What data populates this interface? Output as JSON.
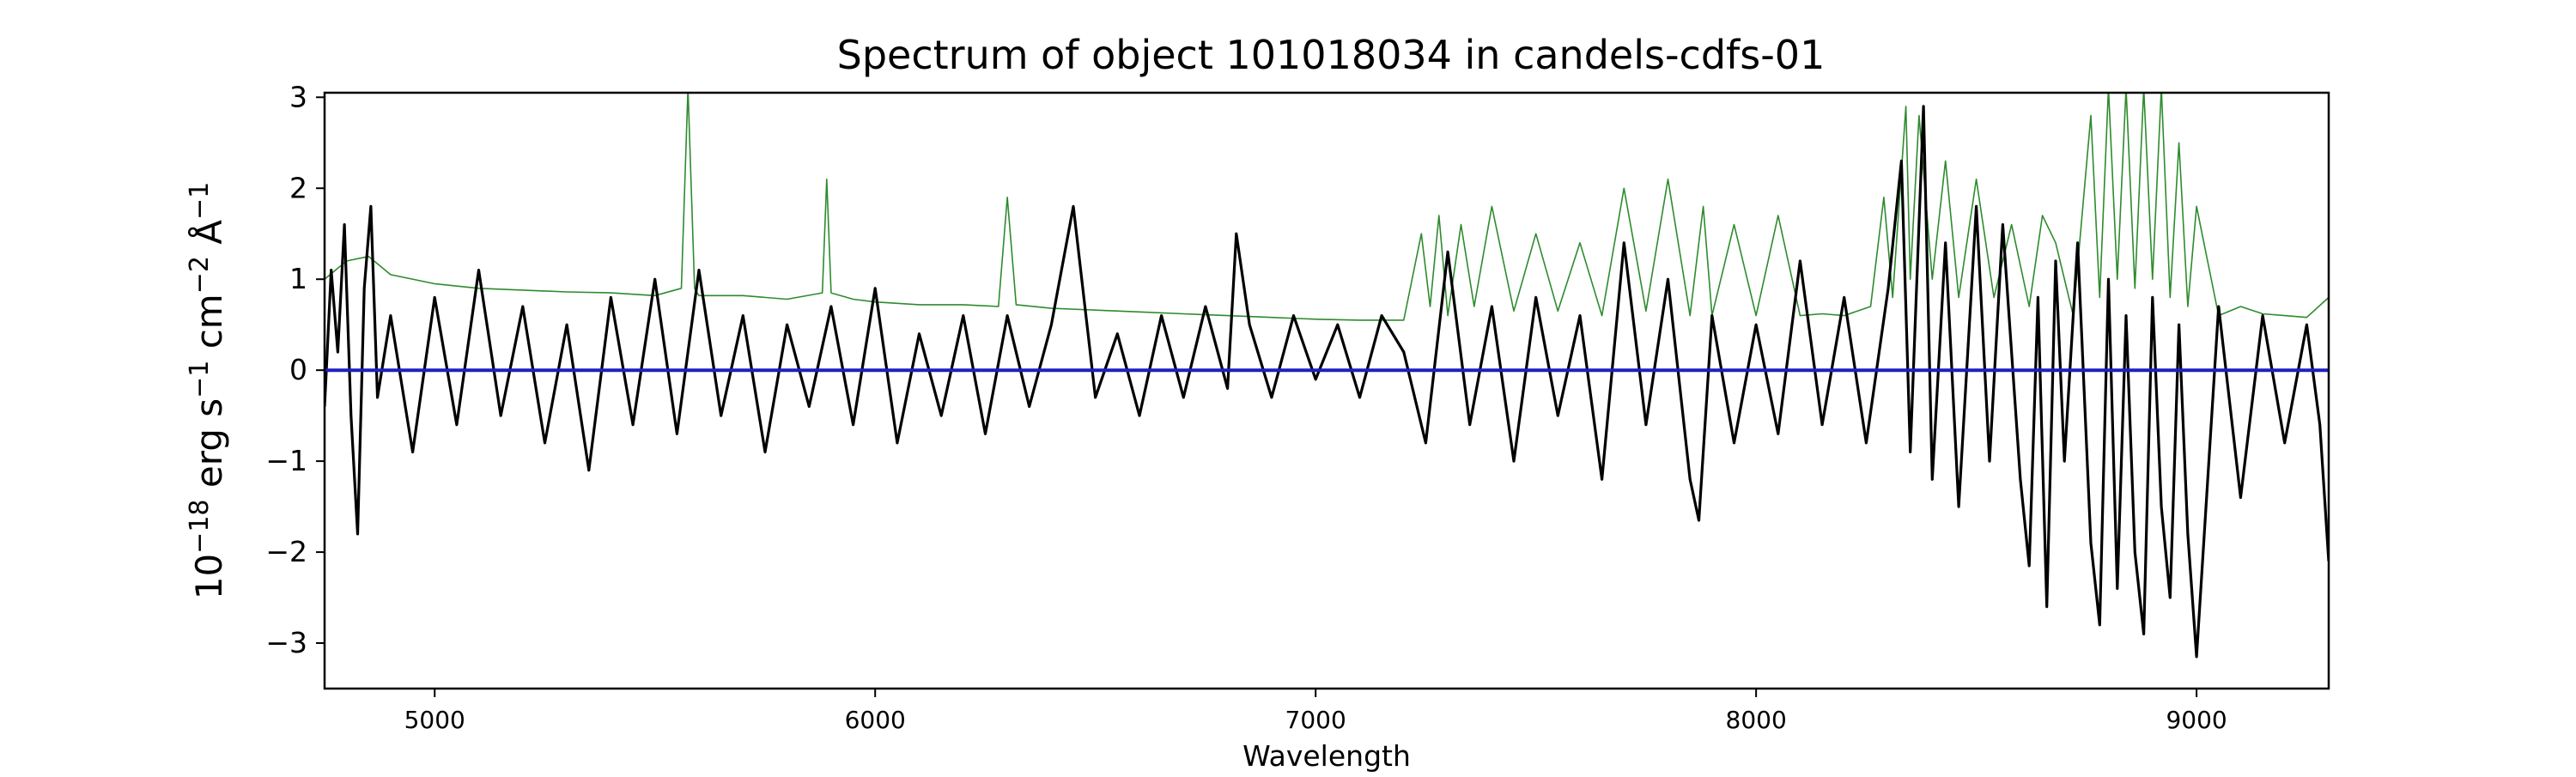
{
  "chart_data": {
    "type": "line",
    "title": "Spectrum of object 101018034 in candels-cdfs-01",
    "xlabel": "Wavelength",
    "ylabel": {
      "base": "10",
      "exp1": "−18",
      "erg": " erg s",
      "exp2": "−1",
      "cm": " cm",
      "exp3": "−2",
      "ang": " Å",
      "exp4": "−1"
    },
    "xlim": [
      4750,
      9300
    ],
    "ylim": [
      -3.5,
      3.05
    ],
    "xticks": [
      5000,
      6000,
      7000,
      8000,
      9000
    ],
    "xtick_labels": [
      "5000",
      "6000",
      "7000",
      "8000",
      "9000"
    ],
    "yticks": [
      -3,
      -2,
      -1,
      0,
      1,
      2,
      3
    ],
    "ytick_labels": [
      "−3",
      "−2",
      "−1",
      "0",
      "1",
      "2",
      "3"
    ],
    "colors": {
      "flux": "#000000",
      "error": "#2e8b2e",
      "zero": "#1f1fbf"
    },
    "series": [
      {
        "key": "error",
        "x": [
          4750,
          4800,
          4850,
          4900,
          5000,
          5100,
          5200,
          5300,
          5400,
          5500,
          5560,
          5575,
          5590,
          5600,
          5700,
          5800,
          5880,
          5890,
          5900,
          5950,
          6000,
          6100,
          6200,
          6280,
          6300,
          6320,
          6400,
          6500,
          6600,
          6700,
          6800,
          6900,
          7000,
          7100,
          7200,
          7240,
          7260,
          7280,
          7300,
          7330,
          7360,
          7400,
          7450,
          7500,
          7550,
          7600,
          7650,
          7700,
          7750,
          7800,
          7850,
          7880,
          7900,
          7950,
          8000,
          8050,
          8100,
          8150,
          8200,
          8260,
          8290,
          8310,
          8340,
          8350,
          8370,
          8400,
          8430,
          8460,
          8500,
          8540,
          8580,
          8620,
          8650,
          8680,
          8720,
          8760,
          8780,
          8800,
          8820,
          8840,
          8860,
          8880,
          8900,
          8920,
          8940,
          8960,
          8980,
          9000,
          9050,
          9100,
          9150,
          9200,
          9250,
          9300
        ],
        "values": [
          1.0,
          1.2,
          1.25,
          1.05,
          0.95,
          0.9,
          0.88,
          0.86,
          0.85,
          0.82,
          0.9,
          3.1,
          0.9,
          0.82,
          0.82,
          0.78,
          0.85,
          2.1,
          0.85,
          0.78,
          0.75,
          0.72,
          0.72,
          0.7,
          1.9,
          0.72,
          0.68,
          0.66,
          0.64,
          0.62,
          0.6,
          0.58,
          0.56,
          0.55,
          0.55,
          1.5,
          0.7,
          1.7,
          0.6,
          1.6,
          0.7,
          1.8,
          0.65,
          1.5,
          0.65,
          1.4,
          0.6,
          2.0,
          0.65,
          2.1,
          0.6,
          1.8,
          0.6,
          1.6,
          0.6,
          1.7,
          0.6,
          0.62,
          0.6,
          0.7,
          1.9,
          0.8,
          2.9,
          1.0,
          2.8,
          1.0,
          2.3,
          0.8,
          2.1,
          0.8,
          1.6,
          0.7,
          1.7,
          1.4,
          0.6,
          2.8,
          0.8,
          3.1,
          1.0,
          3.1,
          0.9,
          3.1,
          1.0,
          3.1,
          0.8,
          2.5,
          0.7,
          1.8,
          0.6,
          0.7,
          0.62,
          0.6,
          0.58,
          0.8
        ]
      },
      {
        "key": "flux",
        "x": [
          4750,
          4765,
          4780,
          4795,
          4810,
          4825,
          4840,
          4855,
          4870,
          4900,
          4950,
          5000,
          5050,
          5100,
          5150,
          5200,
          5250,
          5300,
          5350,
          5400,
          5450,
          5500,
          5550,
          5600,
          5650,
          5700,
          5750,
          5800,
          5850,
          5900,
          5950,
          6000,
          6050,
          6100,
          6150,
          6200,
          6250,
          6300,
          6350,
          6400,
          6450,
          6500,
          6550,
          6600,
          6650,
          6700,
          6750,
          6800,
          6820,
          6850,
          6900,
          6950,
          7000,
          7050,
          7100,
          7150,
          7200,
          7250,
          7300,
          7350,
          7400,
          7450,
          7500,
          7550,
          7600,
          7650,
          7700,
          7750,
          7800,
          7850,
          7870,
          7900,
          7950,
          8000,
          8050,
          8100,
          8150,
          8200,
          8250,
          8300,
          8330,
          8350,
          8380,
          8400,
          8430,
          8460,
          8500,
          8530,
          8560,
          8600,
          8620,
          8640,
          8660,
          8680,
          8700,
          8730,
          8760,
          8780,
          8800,
          8820,
          8840,
          8860,
          8880,
          8900,
          8920,
          8940,
          8960,
          8980,
          9000,
          9050,
          9100,
          9150,
          9200,
          9250,
          9280,
          9300
        ],
        "values": [
          -0.4,
          1.1,
          0.2,
          1.6,
          -0.5,
          -1.8,
          0.9,
          1.8,
          -0.3,
          0.6,
          -0.9,
          0.8,
          -0.6,
          1.1,
          -0.5,
          0.7,
          -0.8,
          0.5,
          -1.1,
          0.8,
          -0.6,
          1.0,
          -0.7,
          1.1,
          -0.5,
          0.6,
          -0.9,
          0.5,
          -0.4,
          0.7,
          -0.6,
          0.9,
          -0.8,
          0.4,
          -0.5,
          0.6,
          -0.7,
          0.6,
          -0.4,
          0.5,
          1.8,
          -0.3,
          0.4,
          -0.5,
          0.6,
          -0.3,
          0.7,
          -0.2,
          1.5,
          0.5,
          -0.3,
          0.6,
          -0.1,
          0.5,
          -0.3,
          0.6,
          0.2,
          -0.8,
          1.3,
          -0.6,
          0.7,
          -1.0,
          0.8,
          -0.5,
          0.6,
          -1.2,
          1.4,
          -0.6,
          1.0,
          -1.2,
          -1.65,
          0.6,
          -0.8,
          0.5,
          -0.7,
          1.2,
          -0.6,
          0.8,
          -0.8,
          0.9,
          2.3,
          -0.9,
          2.9,
          -1.2,
          1.4,
          -1.5,
          1.8,
          -1.0,
          1.6,
          -1.2,
          -2.15,
          0.8,
          -2.6,
          1.2,
          -1.0,
          1.4,
          -1.9,
          -2.8,
          1.0,
          -2.4,
          0.6,
          -2.0,
          -2.9,
          0.8,
          -1.5,
          -2.5,
          0.5,
          -1.8,
          -3.15,
          0.7,
          -1.4,
          0.6,
          -0.8,
          0.5,
          -0.6,
          -2.1
        ]
      },
      {
        "key": "zero",
        "x": [
          4750,
          9300
        ],
        "values": [
          0,
          0
        ]
      }
    ]
  }
}
